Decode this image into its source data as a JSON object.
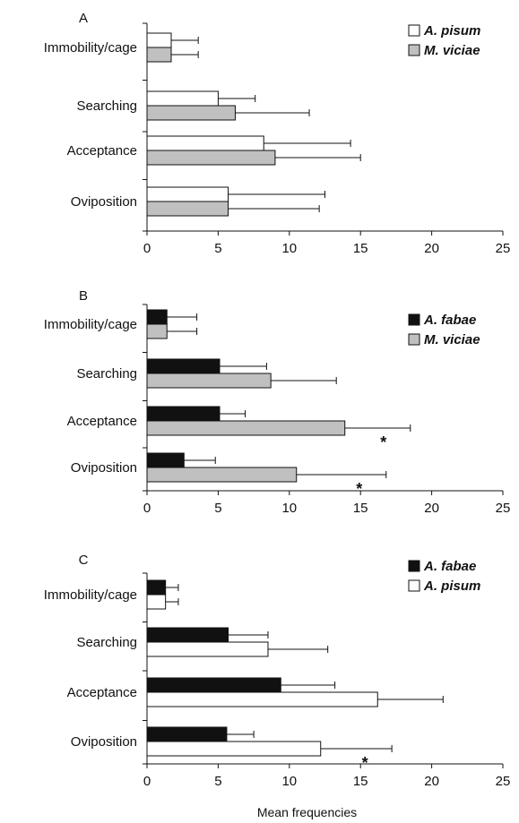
{
  "chart_data": [
    {
      "type": "bar",
      "orientation": "horizontal",
      "panel_label": "A",
      "categories": [
        "Immobility/cage",
        "Searching",
        "Acceptance",
        "Oviposition"
      ],
      "series": [
        {
          "name": "A. pisum",
          "color": "#ffffff",
          "values": [
            1.7,
            5.0,
            8.2,
            5.7
          ],
          "errors": [
            1.9,
            2.6,
            6.1,
            6.8
          ]
        },
        {
          "name": "M. viciae",
          "color": "#c0c0c0",
          "values": [
            1.7,
            6.2,
            9.0,
            5.7
          ],
          "errors": [
            1.9,
            5.2,
            6.0,
            6.4
          ]
        }
      ],
      "significance": [],
      "xlim": [
        0,
        25
      ],
      "xticks": [
        "0",
        "5",
        "10",
        "15",
        "20",
        "25"
      ],
      "legend_position": "top-right",
      "xlabel": ""
    },
    {
      "type": "bar",
      "orientation": "horizontal",
      "panel_label": "B",
      "categories": [
        "Immobility/cage",
        "Searching",
        "Acceptance",
        "Oviposition"
      ],
      "series": [
        {
          "name": "A. fabae",
          "color": "#111111",
          "values": [
            1.4,
            5.1,
            5.1,
            2.6
          ],
          "errors": [
            2.1,
            3.3,
            1.8,
            2.2
          ]
        },
        {
          "name": "M. viciae",
          "color": "#c0c0c0",
          "values": [
            1.4,
            8.7,
            13.9,
            10.5
          ],
          "errors": [
            2.1,
            4.6,
            4.6,
            6.3
          ]
        }
      ],
      "significance": [
        {
          "series": 1,
          "category": 2,
          "label": "*"
        },
        {
          "series": 1,
          "category": 3,
          "label": "*"
        }
      ],
      "xlim": [
        0,
        25
      ],
      "xticks": [
        "0",
        "5",
        "10",
        "15",
        "20",
        "25"
      ],
      "legend_position": "top-right",
      "xlabel": ""
    },
    {
      "type": "bar",
      "orientation": "horizontal",
      "panel_label": "C",
      "categories": [
        "Immobility/cage",
        "Searching",
        "Acceptance",
        "Oviposition"
      ],
      "series": [
        {
          "name": "A. fabae",
          "color": "#111111",
          "values": [
            1.3,
            5.7,
            9.4,
            5.6
          ],
          "errors": [
            0.9,
            2.8,
            3.8,
            1.9
          ]
        },
        {
          "name": "A. pisum",
          "color": "#ffffff",
          "values": [
            1.3,
            8.5,
            16.2,
            12.2
          ],
          "errors": [
            0.9,
            4.2,
            4.6,
            5.0
          ]
        }
      ],
      "significance": [
        {
          "series": 1,
          "category": 3,
          "label": "*"
        }
      ],
      "xlim": [
        0,
        25
      ],
      "xticks": [
        "0",
        "5",
        "10",
        "15",
        "20",
        "25"
      ],
      "legend_position": "top-right",
      "xlabel": "Mean frequencies"
    }
  ]
}
